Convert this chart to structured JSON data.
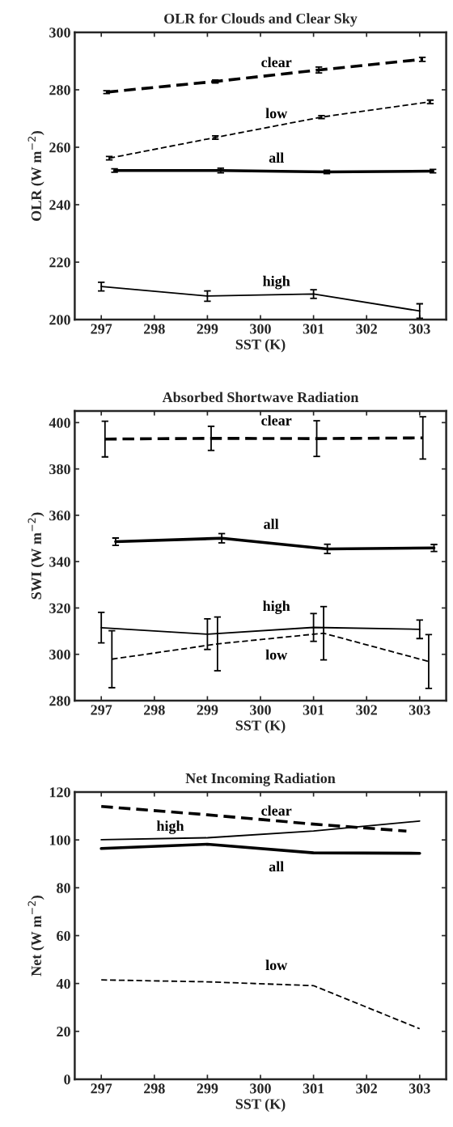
{
  "chart_data": [
    {
      "type": "line",
      "title": "OLR for Clouds and Clear Sky",
      "xlabel": "SST (K)",
      "ylabel": "OLR (W m$^{−2}$)",
      "xlim": [
        296.5,
        303.5
      ],
      "xticks": [
        297,
        298,
        299,
        300,
        301,
        302,
        303
      ],
      "ylim": [
        200,
        300
      ],
      "yticks": [
        200,
        220,
        240,
        260,
        280,
        300
      ],
      "grid": false,
      "legend": false,
      "series": [
        {
          "name": "clear",
          "color": "#000000",
          "line_style": "dashed",
          "x": [
            297.1,
            299.15,
            301.1,
            303.05
          ],
          "values": [
            279.2,
            282.9,
            286.9,
            290.6
          ],
          "errors": [
            0.5,
            0.5,
            1,
            0.7
          ]
        },
        {
          "name": "low",
          "color": "#000000",
          "line_style": "dashed",
          "x": [
            297.15,
            299.15,
            301.15,
            303.2
          ],
          "values": [
            256.2,
            263.4,
            270.5,
            275.8
          ],
          "errors": [
            0.6,
            0.6,
            0.5,
            0.6
          ]
        },
        {
          "name": "all",
          "color": "#000000",
          "line_style": "solid",
          "x": [
            297.25,
            299.25,
            301.25,
            303.25
          ],
          "values": [
            251.9,
            251.9,
            251.4,
            251.7
          ],
          "errors": [
            0.6,
            0.8,
            0.6,
            0.6
          ]
        },
        {
          "name": "high",
          "color": "#000000",
          "line_style": "solid",
          "x": [
            297.0,
            299.0,
            301.0,
            303.0
          ],
          "values": [
            211.5,
            208.2,
            208.9,
            203.0
          ],
          "errors": [
            1.5,
            1.8,
            1.5,
            2.5
          ]
        }
      ]
    },
    {
      "type": "line",
      "title": "Absorbed Shortwave Radiation",
      "xlabel": "SST (K)",
      "ylabel": "SWI (W m$^{−2}$)",
      "xlim": [
        296.5,
        303.5
      ],
      "xticks": [
        297,
        298,
        299,
        300,
        301,
        302,
        303
      ],
      "ylim": [
        280,
        405
      ],
      "yticks": [
        280,
        300,
        320,
        340,
        360,
        380,
        400
      ],
      "grid": false,
      "legend": false,
      "series": [
        {
          "name": "clear",
          "color": "#000000",
          "line_style": "dashed",
          "x": [
            297.07,
            299.07,
            301.06,
            303.06
          ],
          "values": [
            392.9,
            393.2,
            393.1,
            393.4
          ],
          "errors": [
            7.7,
            5.2,
            7.7,
            9.1
          ]
        },
        {
          "name": "all",
          "color": "#000000",
          "line_style": "solid",
          "x": [
            297.27,
            299.27,
            301.26,
            303.27
          ],
          "values": [
            348.6,
            350.1,
            345.5,
            345.9
          ],
          "errors": [
            1.6,
            2,
            2,
            1.5
          ]
        },
        {
          "name": "high",
          "color": "#000000",
          "line_style": "solid",
          "x": [
            297.0,
            299.0,
            301.0,
            303.0
          ],
          "values": [
            311.5,
            308.7,
            311.6,
            310.8
          ],
          "errors": [
            6.6,
            6.6,
            6,
            4
          ]
        },
        {
          "name": "low",
          "color": "#000000",
          "line_style": "dashed",
          "x": [
            297.2,
            299.19,
            301.19,
            303.17
          ],
          "values": [
            297.9,
            304.5,
            309.1,
            296.9
          ],
          "errors": [
            12.3,
            11.6,
            11.5,
            11.6
          ]
        }
      ]
    },
    {
      "type": "line",
      "title": "Net Incoming Radiation",
      "xlabel": "SST (K)",
      "ylabel": "Net (W m$^{−2}$)",
      "xlim": [
        296.5,
        303.5
      ],
      "xticks": [
        297,
        298,
        299,
        300,
        301,
        302,
        303
      ],
      "ylim": [
        0,
        120
      ],
      "yticks": [
        0,
        20,
        40,
        60,
        80,
        100,
        120
      ],
      "grid": false,
      "legend": false,
      "series": [
        {
          "name": "clear",
          "color": "#000000",
          "line_style": "dashed",
          "x": [
            297.0,
            299.0,
            301.0,
            302.75
          ],
          "values": [
            114.0,
            110.5,
            106.6,
            103.7
          ]
        },
        {
          "name": "high",
          "color": "#000000",
          "line_style": "solid",
          "x": [
            297.0,
            299.0,
            301.0,
            303.0
          ],
          "values": [
            100.1,
            100.9,
            103.7,
            107.9
          ]
        },
        {
          "name": "all",
          "color": "#000000",
          "line_style": "solid",
          "x": [
            297.0,
            299.0,
            301.0,
            303.0
          ],
          "values": [
            96.4,
            98.2,
            94.6,
            94.4
          ]
        },
        {
          "name": "low",
          "color": "#000000",
          "line_style": "dashed",
          "x": [
            297.0,
            299.0,
            301.0,
            303.0
          ],
          "values": [
            41.5,
            40.7,
            39.1,
            21.1
          ]
        }
      ]
    }
  ]
}
